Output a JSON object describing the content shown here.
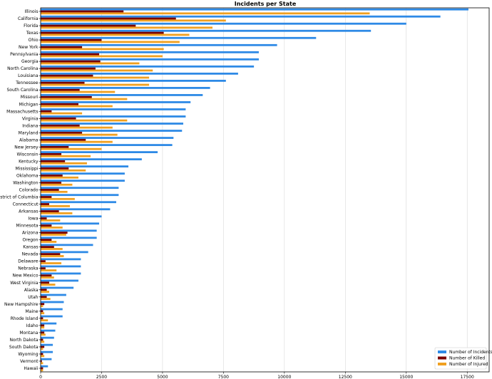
{
  "chart_data": {
    "type": "bar",
    "orientation": "horizontal",
    "title": "Incidents per State",
    "xlabel": "",
    "ylabel": "",
    "xlim": [
      0,
      18400
    ],
    "xticks": [
      0,
      2500,
      5000,
      7500,
      10000,
      12500,
      15000,
      17500
    ],
    "grid": "vertical",
    "legend": "bottom-right",
    "colors": {
      "incidents": "#2e8ae6",
      "killed": "#7a0000",
      "injured": "#f0a020"
    },
    "categories": [
      "Illinois",
      "California",
      "Florida",
      "Texas",
      "Ohio",
      "New York",
      "Pennsylvania",
      "Georgia",
      "North Carolina",
      "Louisiana",
      "Tennessee",
      "South Carolina",
      "Missouri",
      "Michigan",
      "Massachusetts",
      "Virginia",
      "Indiana",
      "Maryland",
      "Alabama",
      "New Jersey",
      "Wisconsin",
      "Kentucky",
      "Mississippi",
      "Oklahoma",
      "Washington",
      "Colorado",
      "District of Columbia",
      "Connecticut",
      "Arkansas",
      "Iowa",
      "Minnesota",
      "Arizona",
      "Oregon",
      "Kansas",
      "Nevada",
      "Delaware",
      "Nebraska",
      "New Mexico",
      "West Virginia",
      "Alaska",
      "Utah",
      "New Hampshire",
      "Maine",
      "Rhode Island",
      "Idaho",
      "Montana",
      "North Dakota",
      "South Dakota",
      "Wyoming",
      "Vermont",
      "Hawaii"
    ],
    "series": [
      {
        "name": "Number of Incidents",
        "key": "incidents",
        "values": [
          17550,
          16400,
          15000,
          13550,
          11300,
          9700,
          8950,
          8950,
          8750,
          8100,
          7600,
          6950,
          6650,
          6150,
          5950,
          5950,
          5850,
          5800,
          5450,
          5400,
          4800,
          4150,
          3600,
          3450,
          3450,
          3200,
          3200,
          3100,
          2850,
          2500,
          2400,
          2300,
          2300,
          2150,
          1950,
          1650,
          1650,
          1650,
          1550,
          1350,
          1050,
          950,
          900,
          900,
          650,
          600,
          550,
          500,
          500,
          450,
          300
        ]
      },
      {
        "name": "Number of Killed",
        "key": "killed",
        "values": [
          3400,
          5550,
          3900,
          5050,
          2500,
          1700,
          2400,
          2450,
          2250,
          2150,
          1800,
          1600,
          2100,
          1550,
          450,
          1450,
          1600,
          1700,
          1850,
          1150,
          850,
          1000,
          1150,
          900,
          850,
          750,
          450,
          350,
          750,
          250,
          450,
          1100,
          450,
          550,
          800,
          200,
          200,
          450,
          350,
          250,
          250,
          150,
          100,
          100,
          150,
          150,
          100,
          150,
          100,
          50,
          100
        ]
      },
      {
        "name": "Number of Injured",
        "key": "injured",
        "values": [
          13500,
          7600,
          7050,
          6100,
          5700,
          5050,
          5000,
          4050,
          4600,
          4450,
          4450,
          3050,
          3550,
          2950,
          1700,
          3550,
          2950,
          3150,
          2950,
          2500,
          2050,
          1900,
          1850,
          1550,
          1300,
          1100,
          1400,
          1200,
          1300,
          800,
          900,
          1050,
          650,
          900,
          950,
          850,
          650,
          550,
          600,
          350,
          400,
          100,
          150,
          300,
          150,
          200,
          150,
          100,
          150,
          100,
          100
        ]
      }
    ]
  }
}
